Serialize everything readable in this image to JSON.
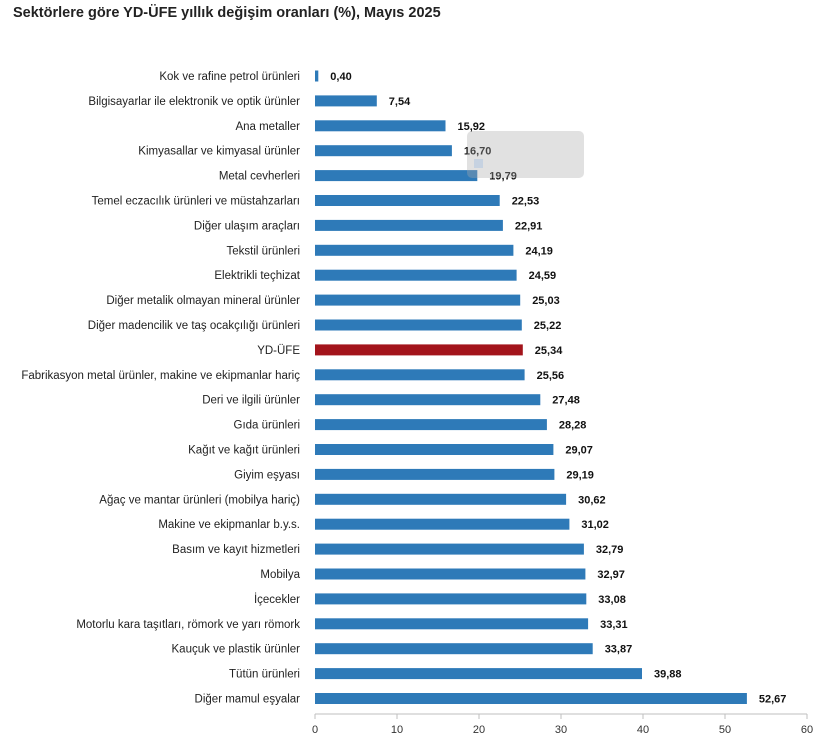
{
  "chart_data": {
    "type": "bar",
    "orientation": "horizontal",
    "title": "Sektörlere göre YD-ÜFE yıllık değişim oranları (%), Mayıs 2025",
    "categories": [
      "Kok ve rafine petrol ürünleri",
      "Bilgisayarlar ile elektronik ve optik ürünler",
      "Ana metaller",
      "Kimyasallar ve kimyasal ürünler",
      "Metal cevherleri",
      "Temel eczacılık ürünleri ve müstahzarları",
      "Diğer ulaşım araçları",
      "Tekstil ürünleri",
      "Elektrikli teçhizat",
      "Diğer metalik olmayan mineral ürünler",
      "Diğer madencilik ve taş ocakçılığı ürünleri",
      "YD-ÜFE",
      "Fabrikasyon metal ürünler, makine ve ekipmanlar hariç",
      "Deri ve ilgili ürünler",
      "Gıda ürünleri",
      "Kağıt ve kağıt ürünleri",
      "Giyim eşyası",
      "Ağaç ve mantar ürünleri (mobilya hariç)",
      "Makine ve ekipmanlar b.y.s.",
      "Basım ve kayıt hizmetleri",
      "Mobilya",
      "İçecekler",
      "Motorlu kara taşıtları, römork ve yarı römork",
      "Kauçuk ve plastik ürünler",
      "Tütün ürünleri",
      "Diğer mamul eşyalar"
    ],
    "values": [
      0.4,
      7.54,
      15.92,
      16.7,
      19.79,
      22.53,
      22.91,
      24.19,
      24.59,
      25.03,
      25.22,
      25.34,
      25.56,
      27.48,
      28.28,
      29.07,
      29.19,
      30.62,
      31.02,
      32.79,
      32.97,
      33.08,
      33.31,
      33.87,
      39.88,
      52.67
    ],
    "value_labels": [
      "0,40",
      "7,54",
      "15,92",
      "16,70",
      "19,79",
      "22,53",
      "22,91",
      "24,19",
      "24,59",
      "25,03",
      "25,22",
      "25,34",
      "25,56",
      "27,48",
      "28,28",
      "29,07",
      "29,19",
      "30,62",
      "31,02",
      "32,79",
      "32,97",
      "33,08",
      "33,31",
      "33,87",
      "39,88",
      "52,67"
    ],
    "highlight_category": "YD-ÜFE",
    "xlim": [
      0,
      60
    ],
    "x_ticks": [
      0,
      10,
      20,
      30,
      40,
      50,
      60
    ],
    "grid": false,
    "legend": "none",
    "colors": {
      "bar": "#2e7ab8",
      "highlight": "#a3141b"
    }
  }
}
